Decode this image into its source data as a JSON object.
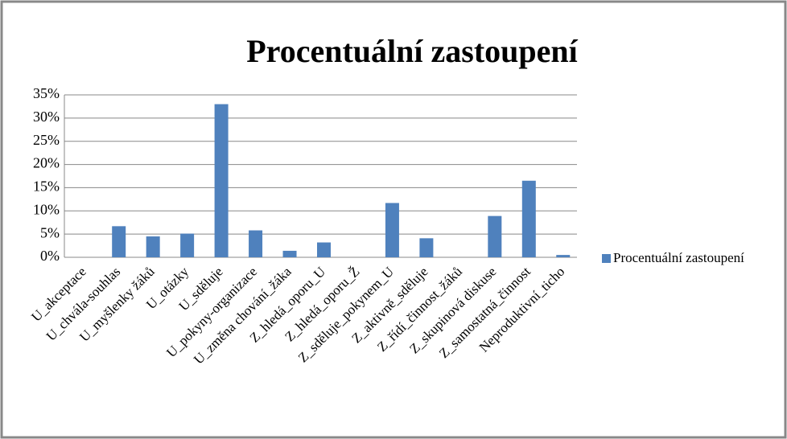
{
  "chart_data": {
    "type": "bar",
    "title": "Procentuální zastoupení",
    "categories": [
      "U_akceptace",
      "U_chvála-souhlas",
      "U_myšlenky žáků",
      "U_otázky",
      "U_sděluje",
      "U_pokyny-organizace",
      "U_změna chování_žáka",
      "Z_hledá_oporu_U",
      "Z_hledá_oporu_Ž",
      "Z_sděluje_pokynem_U",
      "Z_aktivně_sděluje",
      "Z_řídí_činnost_žáků",
      "Z_skupinová diskuse",
      "Z_samostatná_činnost",
      "Neproduktivní_ticho"
    ],
    "series": [
      {
        "name": "Procentuální zastoupení",
        "color": "#4f81bd",
        "values": [
          0,
          6.7,
          4.5,
          5.1,
          33,
          5.8,
          1.4,
          3.2,
          0,
          11.7,
          4.1,
          0,
          8.9,
          16.5,
          0.5
        ]
      }
    ],
    "ylim": [
      0,
      35
    ],
    "yticks": [
      {
        "value": 0,
        "label": "0%"
      },
      {
        "value": 5,
        "label": "5%"
      },
      {
        "value": 10,
        "label": "10%"
      },
      {
        "value": 15,
        "label": "15%"
      },
      {
        "value": 20,
        "label": "20%"
      },
      {
        "value": 25,
        "label": "25%"
      },
      {
        "value": 30,
        "label": "30%"
      },
      {
        "value": 35,
        "label": "35%"
      }
    ],
    "grid": true,
    "legend": "right"
  }
}
